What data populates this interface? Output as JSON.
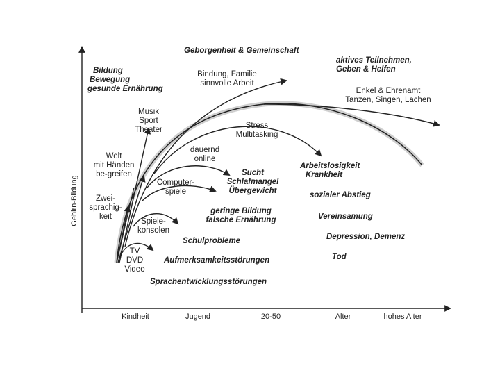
{
  "axes": {
    "y_label": "Gehirn-Bildung",
    "x_ticks": [
      "Kindheit",
      "Jugend",
      "20-50",
      "Alter",
      "hohes Alter"
    ]
  },
  "top_labels": {
    "center": "Geborgenheit & Gemeinschaft",
    "right": [
      "aktives Teilnehmen,",
      "Geben & Helfen"
    ],
    "left": [
      "Bildung",
      "Bewegung",
      "gesunde Ernährung"
    ]
  },
  "curve_labels": {
    "bindung": [
      "Bindung, Familie",
      "sinnvolle Arbeit"
    ],
    "enkel": [
      "Enkel & Ehrenamt",
      "Tanzen, Singen, Lachen"
    ],
    "musik": [
      "Musik",
      "Sport",
      "Theater"
    ],
    "stress": [
      "Stress",
      "Multitasking"
    ],
    "welt": [
      "Welt",
      "mit Händen",
      "be-greifen"
    ],
    "online": [
      "dauernd",
      "online"
    ],
    "computer": [
      "Computer-",
      "spiele"
    ],
    "zwei": [
      "Zwei-",
      "sprachig-",
      "keit"
    ],
    "konsolen": [
      "Spiele-",
      "konsolen"
    ],
    "tv": [
      "TV",
      "DVD",
      "Video"
    ]
  },
  "effects": {
    "arbeitslos": [
      "Arbeitslosigkeit",
      "Krankheit"
    ],
    "sucht": [
      "Sucht",
      "Schlafmangel",
      "Übergewicht"
    ],
    "abstieg": "sozialer Abstieg",
    "bildung": [
      "geringe Bildung",
      "falsche Ernährung"
    ],
    "vereinsamung": "Vereinsamung",
    "depression": "Depression, Demenz",
    "schul": "Schulprobleme",
    "tod": "Tod",
    "aufmerksamkeit": "Aufmerksamkeitsstörungen",
    "sprach": "Sprachentwicklungsstörungen"
  }
}
